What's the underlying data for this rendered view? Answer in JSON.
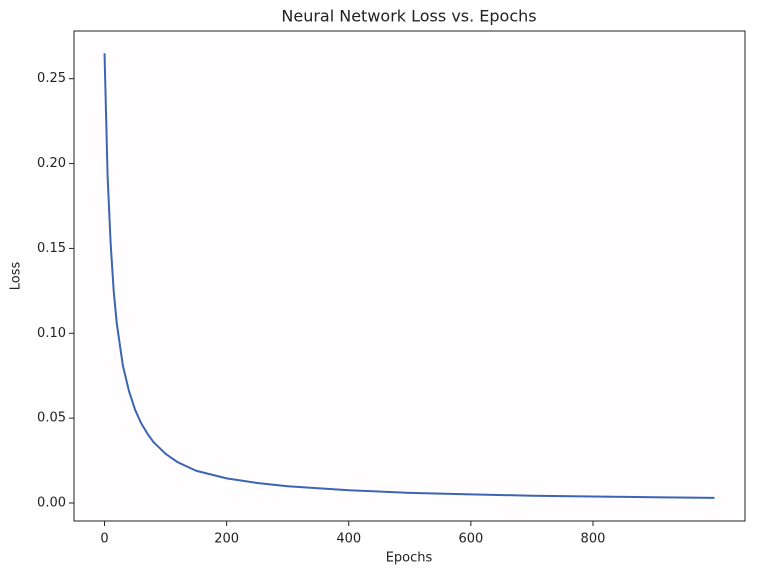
{
  "chart_data": {
    "type": "line",
    "title": "Neural Network Loss vs. Epochs",
    "x_label": "Epochs",
    "y_label": "Loss",
    "x": [
      0,
      5,
      10,
      15,
      20,
      30,
      40,
      50,
      60,
      70,
      80,
      100,
      120,
      150,
      200,
      250,
      300,
      400,
      500,
      600,
      700,
      800,
      900,
      999
    ],
    "series": [
      {
        "color": "#3b64b5",
        "values": [
          0.265,
          0.193,
          0.153,
          0.125,
          0.106,
          0.081,
          0.066,
          0.055,
          0.047,
          0.041,
          0.036,
          0.029,
          0.024,
          0.019,
          0.0145,
          0.0118,
          0.0099,
          0.0075,
          0.006,
          0.0051,
          0.0043,
          0.0038,
          0.0034,
          0.003
        ]
      }
    ],
    "xlim": [
      -50,
      1049
    ],
    "ylim": [
      -0.0106,
      0.2781
    ],
    "xticks": [
      0,
      200,
      400,
      600,
      800
    ],
    "yticks": [
      {
        "value": 0,
        "label": "0.00"
      },
      {
        "value": 0.05,
        "label": "0.05"
      },
      {
        "value": 0.1,
        "label": "0.10"
      },
      {
        "value": 0.15,
        "label": "0.15"
      },
      {
        "value": 0.2,
        "label": "0.20"
      },
      {
        "value": 0.25,
        "label": "0.25"
      }
    ],
    "grid": false
  }
}
